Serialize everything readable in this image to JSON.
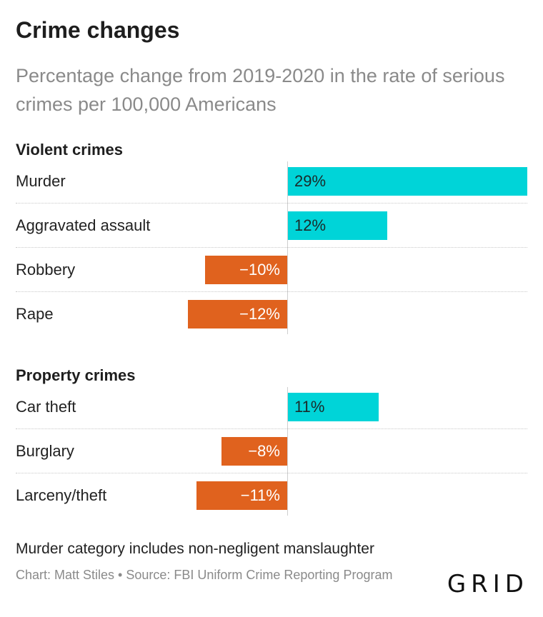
{
  "title": "Crime changes",
  "subtitle": "Percentage change from 2019-2020 in the rate of serious crimes per 100,000 Americans",
  "chart_data": {
    "type": "bar",
    "orientation": "horizontal",
    "unit": "%",
    "xlim": [
      -12,
      29
    ],
    "groups": [
      {
        "name": "Violent crimes",
        "items": [
          {
            "label": "Murder",
            "value": 29,
            "display": "29%"
          },
          {
            "label": "Aggravated assault",
            "value": 12,
            "display": "12%"
          },
          {
            "label": "Robbery",
            "value": -10,
            "display": "−10%"
          },
          {
            "label": "Rape",
            "value": -12,
            "display": "−12%"
          }
        ]
      },
      {
        "name": "Property crimes",
        "items": [
          {
            "label": "Car theft",
            "value": 11,
            "display": "11%"
          },
          {
            "label": "Burglary",
            "value": -8,
            "display": "−8%"
          },
          {
            "label": "Larceny/theft",
            "value": -11,
            "display": "−11%"
          }
        ]
      }
    ],
    "colors": {
      "positive": "#00d4d8",
      "negative": "#e0621e"
    }
  },
  "footnote": "Murder category includes non-negligent manslaughter",
  "credit": "Chart: Matt Stiles • Source: FBI Uniform Crime Reporting Program",
  "logo": "GRID"
}
